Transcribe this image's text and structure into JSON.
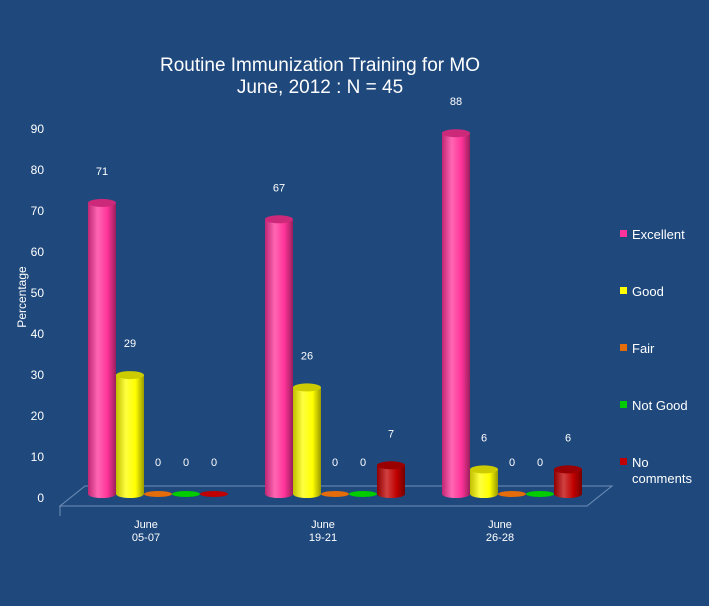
{
  "chart_data": {
    "type": "bar",
    "title": "Routine Immunization Training for MO",
    "subtitle": "June, 2012 : N = 45",
    "ylabel": "Percentage",
    "xlabel": "",
    "ylim": [
      0,
      90
    ],
    "yticks": [
      0,
      10,
      20,
      30,
      40,
      50,
      60,
      70,
      80,
      90
    ],
    "categories": [
      "June\n05-07",
      "June\n19-21",
      "June\n26-28"
    ],
    "series": [
      {
        "name": "Excellent",
        "color": "#ff3399",
        "values": [
          71,
          67,
          88
        ]
      },
      {
        "name": "Good",
        "color": "#ffff00",
        "values": [
          29,
          26,
          6
        ]
      },
      {
        "name": "Fair",
        "color": "#e46c0a",
        "values": [
          0,
          0,
          0
        ]
      },
      {
        "name": "Not Good",
        "color": "#00cc00",
        "values": [
          0,
          0,
          0
        ]
      },
      {
        "name": "No comments",
        "color": "#c00000",
        "values": [
          0,
          7,
          6
        ]
      }
    ],
    "legend_position": "right",
    "grid": false
  }
}
